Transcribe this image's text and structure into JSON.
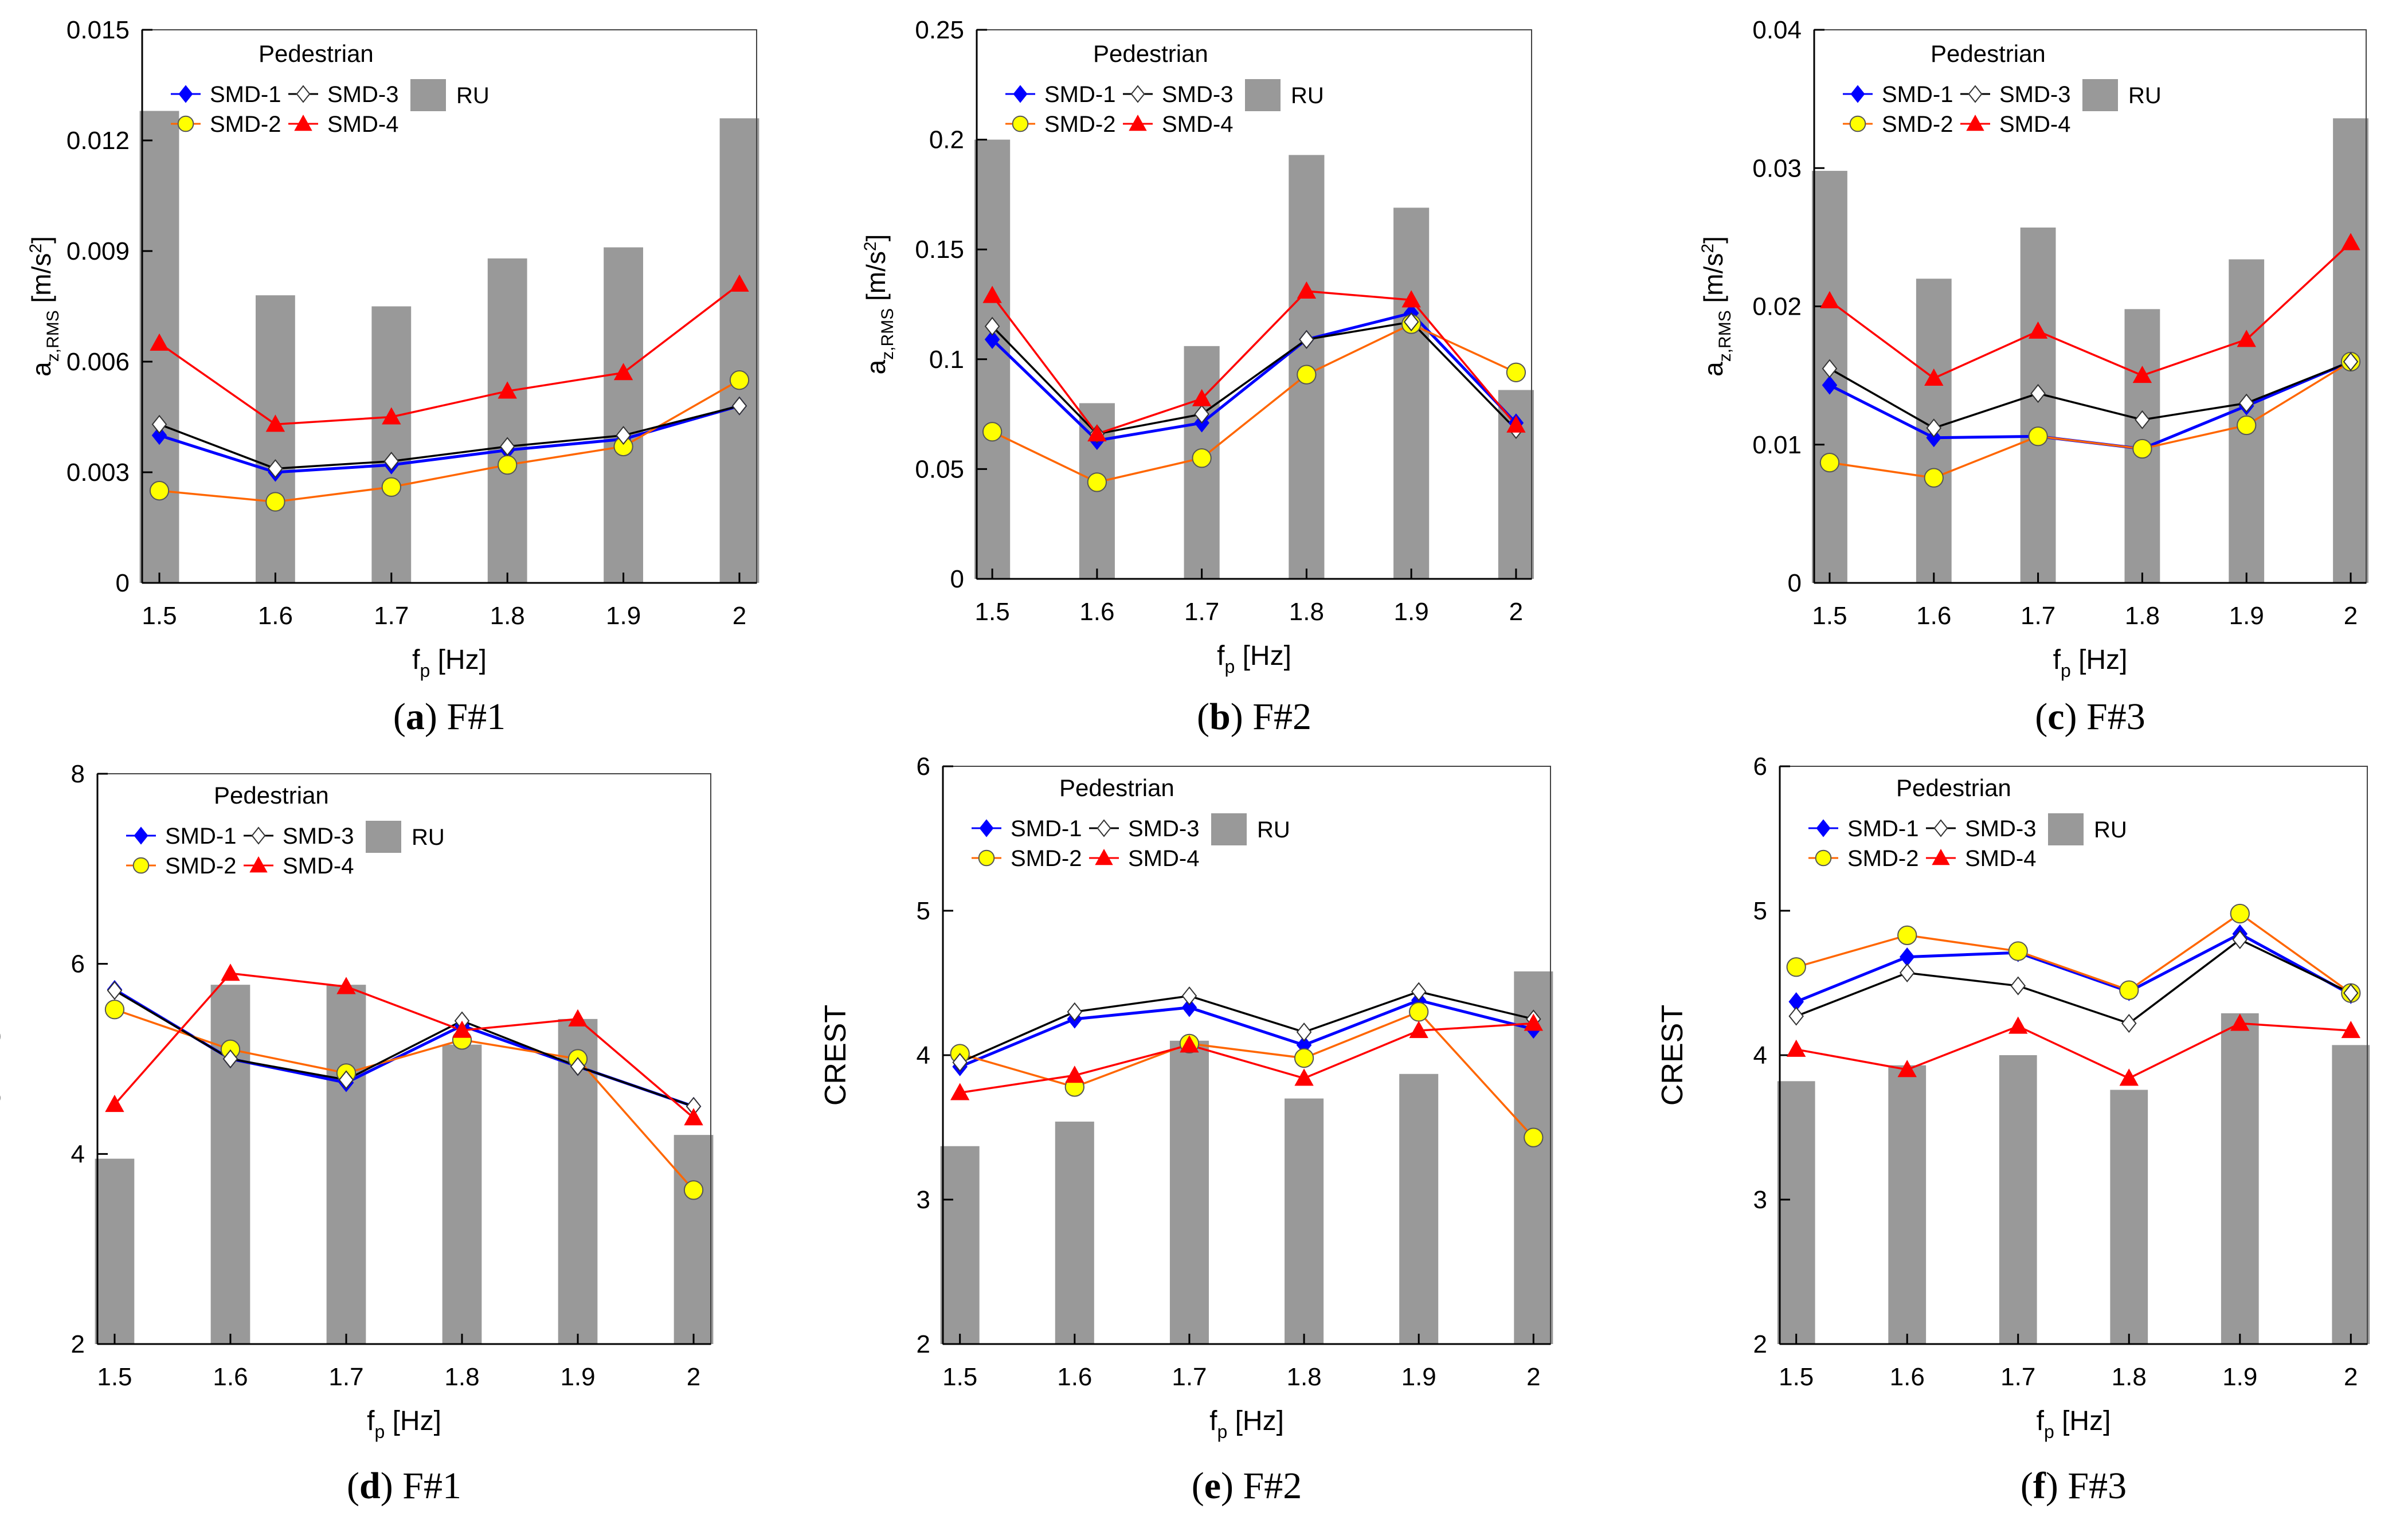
{
  "legend_title": "Pedestrian",
  "x_label_main": "f",
  "x_label_sub": "p",
  "x_label_unit": " [Hz]",
  "y_label_rms_main": "a",
  "y_label_rms_sub": "z,RMS",
  "y_label_rms_unit": " [m/s",
  "y_label_rms_sup": "2",
  "y_label_rms_close": "]",
  "y_label_crest": "CREST",
  "colors": {
    "bars": "#999999",
    "SMD-1": "#0000ff",
    "SMD-2": "#ff6600",
    "SMD-3": "#000000",
    "SMD-4": "#ff0000",
    "SMD-2-marker": "#ffff00"
  },
  "chart_data": [
    {
      "type": "bar+line",
      "caption_letter": "a",
      "caption_text": " F#1",
      "categories": [
        "1.5",
        "1.6",
        "1.7",
        "1.8",
        "1.9",
        "2"
      ],
      "ylim": [
        0,
        0.015
      ],
      "yticks": [
        "0",
        "0.003",
        "0.006",
        "0.009",
        "0.012",
        "0.015"
      ],
      "ylabel_kind": "rms",
      "bars": {
        "name": "RU",
        "values": [
          0.0128,
          0.0078,
          0.0075,
          0.0088,
          0.0091,
          0.0126
        ]
      },
      "series": [
        {
          "name": "SMD-1",
          "values": [
            0.004,
            0.003,
            0.0032,
            0.0036,
            0.0039,
            0.0048
          ]
        },
        {
          "name": "SMD-2",
          "values": [
            0.0025,
            0.0022,
            0.0026,
            0.0032,
            0.0037,
            0.0055
          ]
        },
        {
          "name": "SMD-3",
          "values": [
            0.0043,
            0.0031,
            0.0033,
            0.0037,
            0.004,
            0.0048
          ]
        },
        {
          "name": "SMD-4",
          "values": [
            0.0065,
            0.0043,
            0.0045,
            0.0052,
            0.0057,
            0.0081
          ]
        }
      ]
    },
    {
      "type": "bar+line",
      "caption_letter": "b",
      "caption_text": " F#2",
      "categories": [
        "1.5",
        "1.6",
        "1.7",
        "1.8",
        "1.9",
        "2"
      ],
      "ylim": [
        0,
        0.25
      ],
      "yticks": [
        "0",
        "0.05",
        "0.1",
        "0.15",
        "0.2",
        "0.25"
      ],
      "ylabel_kind": "rms",
      "bars": {
        "name": "RU",
        "values": [
          0.2,
          0.08,
          0.106,
          0.193,
          0.169,
          0.086
        ]
      },
      "series": [
        {
          "name": "SMD-1",
          "values": [
            0.109,
            0.063,
            0.071,
            0.109,
            0.121,
            0.071
          ]
        },
        {
          "name": "SMD-2",
          "values": [
            0.067,
            0.044,
            0.055,
            0.093,
            0.116,
            0.094
          ]
        },
        {
          "name": "SMD-3",
          "values": [
            0.115,
            0.066,
            0.075,
            0.109,
            0.117,
            0.068
          ]
        },
        {
          "name": "SMD-4",
          "values": [
            0.129,
            0.066,
            0.082,
            0.131,
            0.127,
            0.07
          ]
        }
      ]
    },
    {
      "type": "bar+line",
      "caption_letter": "c",
      "caption_text": " F#3",
      "categories": [
        "1.5",
        "1.6",
        "1.7",
        "1.8",
        "1.9",
        "2"
      ],
      "ylim": [
        0,
        0.04
      ],
      "yticks": [
        "0",
        "0.01",
        "0.02",
        "0.03",
        "0.04"
      ],
      "ylabel_kind": "rms",
      "bars": {
        "name": "RU",
        "values": [
          0.0298,
          0.022,
          0.0257,
          0.0198,
          0.0234,
          0.0336
        ]
      },
      "series": [
        {
          "name": "SMD-1",
          "values": [
            0.0143,
            0.0105,
            0.0106,
            0.0097,
            0.0128,
            0.016
          ]
        },
        {
          "name": "SMD-2",
          "values": [
            0.0087,
            0.0076,
            0.0106,
            0.0097,
            0.0114,
            0.016
          ]
        },
        {
          "name": "SMD-3",
          "values": [
            0.0155,
            0.0112,
            0.0137,
            0.0118,
            0.013,
            0.016
          ]
        },
        {
          "name": "SMD-4",
          "values": [
            0.0204,
            0.0148,
            0.0182,
            0.015,
            0.0176,
            0.0246
          ]
        }
      ]
    },
    {
      "type": "bar+line",
      "caption_letter": "d",
      "caption_text": " F#1",
      "categories": [
        "1.5",
        "1.6",
        "1.7",
        "1.8",
        "1.9",
        "2"
      ],
      "ylim": [
        2,
        8
      ],
      "yticks": [
        "2",
        "4",
        "6",
        "8"
      ],
      "ylabel_kind": "crest",
      "bars": {
        "name": "RU",
        "values": [
          3.95,
          5.78,
          5.78,
          5.15,
          5.42,
          4.2
        ]
      },
      "series": [
        {
          "name": "SMD-1",
          "values": [
            5.73,
            5.0,
            4.75,
            5.35,
            4.92,
            4.5
          ]
        },
        {
          "name": "SMD-2",
          "values": [
            5.52,
            5.1,
            4.85,
            5.2,
            5.0,
            3.62
          ]
        },
        {
          "name": "SMD-3",
          "values": [
            5.72,
            5.0,
            4.78,
            5.4,
            4.92,
            4.5
          ]
        },
        {
          "name": "SMD-4",
          "values": [
            4.52,
            5.9,
            5.76,
            5.3,
            5.42,
            4.38
          ]
        }
      ]
    },
    {
      "type": "bar+line",
      "caption_letter": "e",
      "caption_text": " F#2",
      "categories": [
        "1.5",
        "1.6",
        "1.7",
        "1.8",
        "1.9",
        "2"
      ],
      "ylim": [
        2,
        6
      ],
      "yticks": [
        "2",
        "3",
        "4",
        "5",
        "6"
      ],
      "ylabel_kind": "crest",
      "bars": {
        "name": "RU",
        "values": [
          3.37,
          3.54,
          4.1,
          3.7,
          3.87,
          4.58
        ]
      },
      "series": [
        {
          "name": "SMD-1",
          "values": [
            3.92,
            4.25,
            4.33,
            4.07,
            4.38,
            4.18
          ]
        },
        {
          "name": "SMD-2",
          "values": [
            4.01,
            3.78,
            4.08,
            3.98,
            4.3,
            3.43
          ]
        },
        {
          "name": "SMD-3",
          "values": [
            3.95,
            4.3,
            4.41,
            4.16,
            4.44,
            4.25
          ]
        },
        {
          "name": "SMD-4",
          "values": [
            3.74,
            3.86,
            4.07,
            3.84,
            4.17,
            4.22
          ]
        }
      ]
    },
    {
      "type": "bar+line",
      "caption_letter": "f",
      "caption_text": " F#3",
      "categories": [
        "1.5",
        "1.6",
        "1.7",
        "1.8",
        "1.9",
        "2"
      ],
      "ylim": [
        2,
        6
      ],
      "yticks": [
        "2",
        "3",
        "4",
        "5",
        "6"
      ],
      "ylabel_kind": "crest",
      "bars": {
        "name": "RU",
        "values": [
          3.82,
          3.93,
          4.0,
          3.76,
          4.29,
          4.07
        ]
      },
      "series": [
        {
          "name": "SMD-1",
          "values": [
            4.37,
            4.68,
            4.71,
            4.44,
            4.84,
            4.42
          ]
        },
        {
          "name": "SMD-2",
          "values": [
            4.61,
            4.83,
            4.72,
            4.45,
            4.98,
            4.43
          ]
        },
        {
          "name": "SMD-3",
          "values": [
            4.27,
            4.57,
            4.48,
            4.22,
            4.8,
            4.43
          ]
        },
        {
          "name": "SMD-4",
          "values": [
            4.04,
            3.9,
            4.2,
            3.84,
            4.22,
            4.17
          ]
        }
      ]
    }
  ]
}
